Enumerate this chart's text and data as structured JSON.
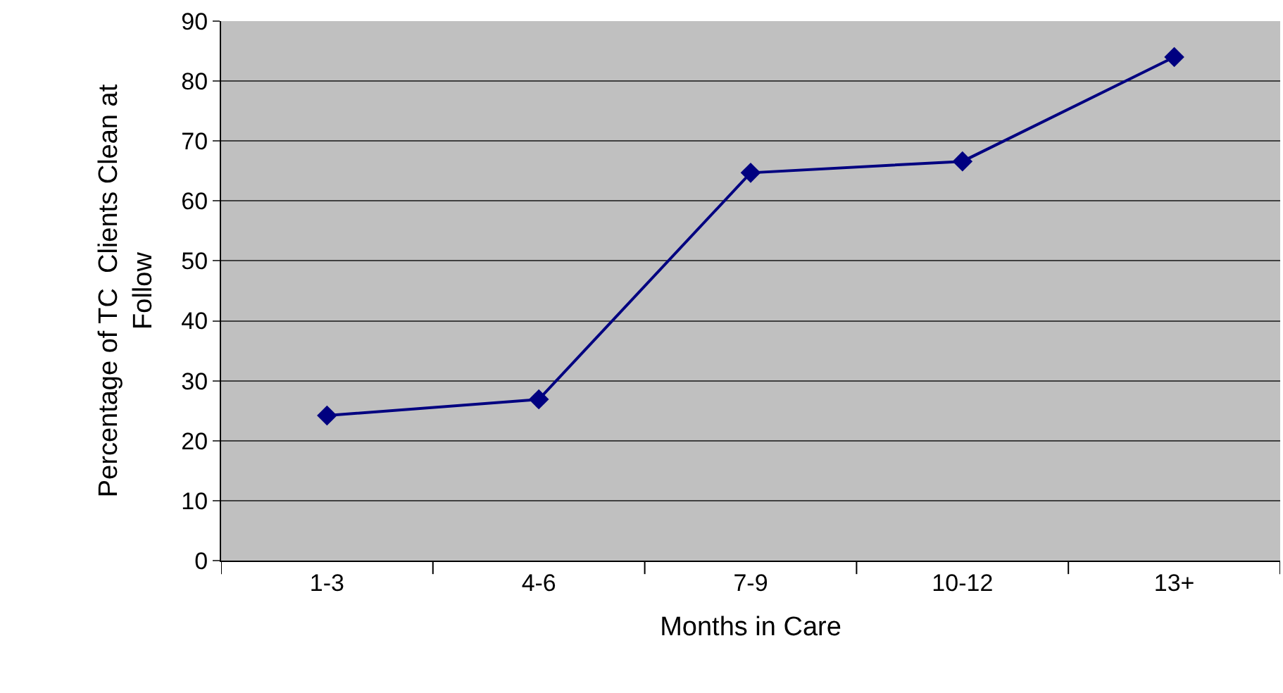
{
  "chart_data": {
    "type": "line",
    "xlabel": "Months in Care",
    "ylabel": "Percentage of TC  Clients Clean at\nFollow",
    "categories": [
      "1-3",
      "4-6",
      "7-9",
      "10-12",
      "13+"
    ],
    "series": [
      {
        "color": "#000080",
        "values": [
          24.2,
          26.9,
          64.7,
          66.6,
          84.0
        ]
      }
    ],
    "ylim": [
      0,
      90
    ],
    "yticks": [
      0,
      10,
      20,
      30,
      40,
      50,
      60,
      70,
      80,
      90
    ],
    "grid": "y",
    "legend": false,
    "marker": "diamond",
    "line_style": "solid"
  }
}
